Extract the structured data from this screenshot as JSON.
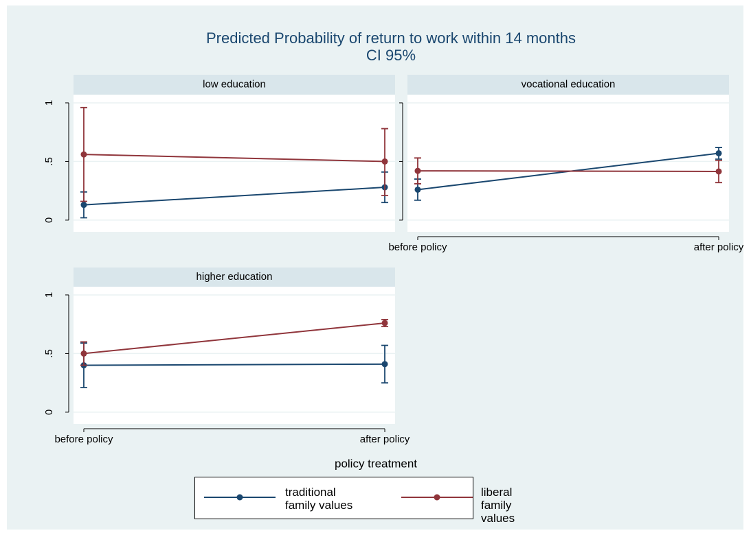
{
  "title": "Predicted Probability of return to work within 14 months",
  "subtitle": "CI 95%",
  "xlabel": "policy treatment",
  "legend": "bottom",
  "chart_data": [
    {
      "type": "line",
      "title": "low education",
      "categories": [
        null,
        null
      ],
      "series": [
        {
          "name": "traditional\nfamily values",
          "color": "#1a476f",
          "values": [
            0.13,
            0.28
          ],
          "ci_low": [
            0.02,
            0.15
          ],
          "ci_high": [
            0.24,
            0.41
          ]
        },
        {
          "name": "liberal\nfamily values",
          "color": "#90353b",
          "values": [
            0.56,
            0.5
          ],
          "ci_low": [
            0.16,
            0.21
          ],
          "ci_high": [
            0.96,
            0.78
          ]
        }
      ],
      "ylim": [
        -0.1,
        1.07
      ],
      "yticks": [
        0,
        {
          "value": 0.5,
          "label": ".5"
        },
        1
      ],
      "ytick_labels": true,
      "grid": true
    },
    {
      "type": "line",
      "title": "vocational education",
      "categories": [
        "before policy",
        "after policy"
      ],
      "series": [
        {
          "name": "traditional\nfamily values",
          "color": "#1a476f",
          "values": [
            0.26,
            0.57
          ],
          "ci_low": [
            0.17,
            0.52
          ],
          "ci_high": [
            0.35,
            0.62
          ]
        },
        {
          "name": "liberal\nfamily values",
          "color": "#90353b",
          "values": [
            0.42,
            0.415
          ],
          "ci_low": [
            0.31,
            0.32
          ],
          "ci_high": [
            0.53,
            0.51
          ]
        }
      ],
      "ylim": [
        -0.1,
        1.07
      ],
      "yticks": [
        0,
        {
          "value": 0.5,
          "label": ".5"
        },
        1
      ],
      "ytick_labels": false,
      "grid": true
    },
    {
      "type": "line",
      "title": "higher education",
      "categories": [
        "before policy",
        "after policy"
      ],
      "series": [
        {
          "name": "traditional\nfamily values",
          "color": "#1a476f",
          "values": [
            0.4,
            0.41
          ],
          "ci_low": [
            0.21,
            0.25
          ],
          "ci_high": [
            0.59,
            0.57
          ]
        },
        {
          "name": "liberal\nfamily values",
          "color": "#90353b",
          "values": [
            0.5,
            0.76
          ],
          "ci_low": [
            0.4,
            0.73
          ],
          "ci_high": [
            0.6,
            0.79
          ]
        }
      ],
      "ylim": [
        -0.1,
        1.07
      ],
      "yticks": [
        0,
        {
          "value": 0.5,
          "label": ".5"
        },
        1
      ],
      "ytick_labels": true,
      "grid": true
    }
  ]
}
